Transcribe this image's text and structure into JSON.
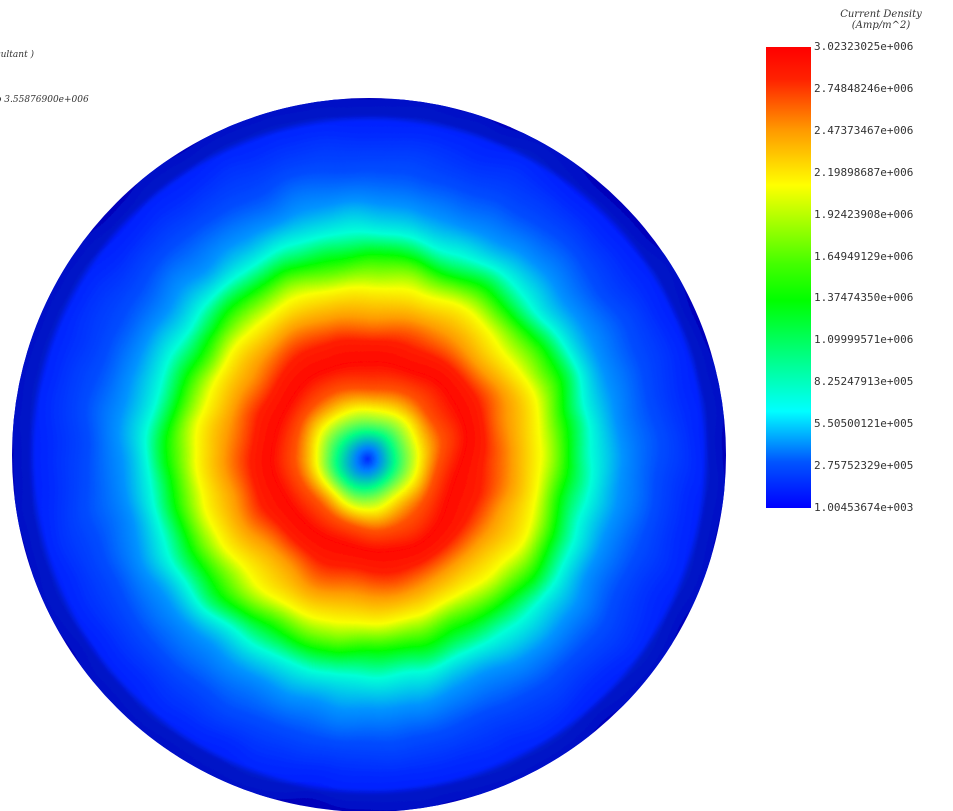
{
  "header": {
    "line_1": "sultant )",
    "line_2": "o 3.55876900e+006"
  },
  "legend": {
    "title_line_1": "Current Density",
    "title_line_2": "(Amp/m^2)",
    "labels": [
      "3.02323025e+006",
      "2.74848246e+006",
      "2.47373467e+006",
      "2.19898687e+006",
      "1.92423908e+006",
      "1.64949129e+006",
      "1.37474350e+006",
      "1.09999571e+006",
      "8.25247913e+005",
      "5.50500121e+005",
      "2.75752329e+005",
      "1.00453674e+003"
    ],
    "colors": [
      "#ff0000",
      "#ff9900",
      "#ffff00",
      "#00ff00",
      "#00ffff",
      "#0000ff"
    ]
  },
  "chart_data": {
    "type": "heatmap",
    "title": "Current Density",
    "unit": "(Amp/m^2)",
    "value_range": [
      1004.53674,
      3023230.25
    ],
    "colormap": [
      "#0000ff",
      "#00ffff",
      "#00ff00",
      "#ffff00",
      "#ff9900",
      "#ff0000"
    ],
    "radial_profile": {
      "r_fraction": [
        0.0,
        0.03,
        0.08,
        0.14,
        0.2,
        0.27,
        0.33,
        0.4,
        0.48,
        0.56,
        0.62,
        0.7,
        0.8,
        0.9,
        1.0
      ],
      "value": [
        100000,
        300000,
        900000,
        1800000,
        2700000,
        3000000,
        2900000,
        2400000,
        1800000,
        1200000,
        700000,
        350000,
        180000,
        100000,
        50000
      ]
    }
  }
}
